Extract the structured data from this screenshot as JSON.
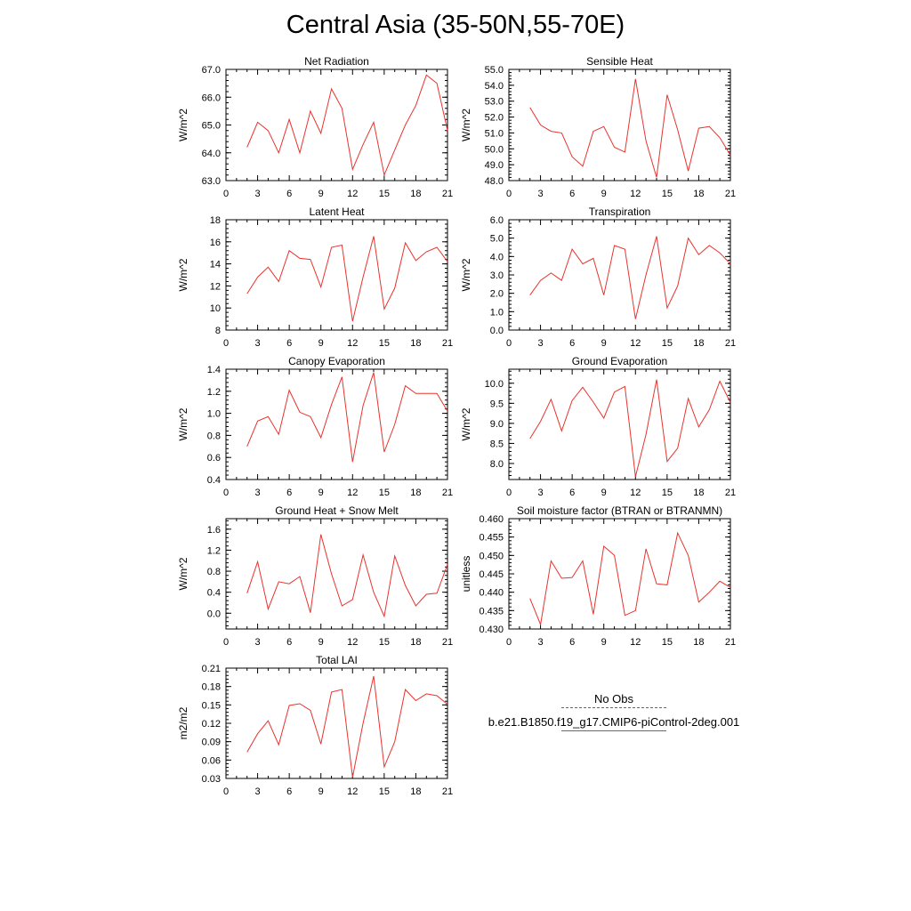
{
  "title": "Central Asia (35-50N,55-70E)",
  "colors": {
    "model": "#e8332e",
    "obs": "#5560a8"
  },
  "legend": {
    "obs_label": "No Obs",
    "model_label": "b.e21.B1850.f19_g17.CMIP6-piControl-2deg.001"
  },
  "chart_data": [
    {
      "type": "line",
      "title": "Net Radiation",
      "ylabel": "W/m^2",
      "xlim": [
        0,
        21
      ],
      "ylim": [
        63,
        67
      ],
      "xticks": [
        "0",
        "3",
        "6",
        "9",
        "12",
        "15",
        "18",
        "21"
      ],
      "yticks": [
        "63.0",
        "64.0",
        "65.0",
        "66.0",
        "67.0"
      ],
      "x": [
        2,
        3,
        4,
        5,
        6,
        7,
        8,
        9,
        10,
        11,
        12,
        13,
        14,
        15,
        16,
        17,
        18,
        19,
        20,
        21
      ],
      "series": [
        {
          "values": [
            64.2,
            65.1,
            64.8,
            64.0,
            65.2,
            64.0,
            65.5,
            64.7,
            66.3,
            65.6,
            63.4,
            64.3,
            65.1,
            63.2,
            64.1,
            65.0,
            65.7,
            66.8,
            66.5,
            64.8
          ]
        }
      ]
    },
    {
      "type": "line",
      "title": "Sensible Heat",
      "ylabel": "W/m^2",
      "xlim": [
        0,
        21
      ],
      "ylim": [
        48,
        55
      ],
      "xticks": [
        "0",
        "3",
        "6",
        "9",
        "12",
        "15",
        "18",
        "21"
      ],
      "yticks": [
        "48.0",
        "49.0",
        "50.0",
        "51.0",
        "52.0",
        "53.0",
        "54.0",
        "55.0"
      ],
      "x": [
        2,
        3,
        4,
        5,
        6,
        7,
        8,
        9,
        10,
        11,
        12,
        13,
        14,
        15,
        16,
        17,
        18,
        19,
        20,
        21
      ],
      "series": [
        {
          "values": [
            52.6,
            51.5,
            51.1,
            51.0,
            49.5,
            48.9,
            51.1,
            51.4,
            50.1,
            49.8,
            54.4,
            50.5,
            48.2,
            53.4,
            51.2,
            48.6,
            51.3,
            51.4,
            50.7,
            49.6
          ]
        }
      ]
    },
    {
      "type": "line",
      "title": "Latent Heat",
      "ylabel": "W/m^2",
      "xlim": [
        0,
        21
      ],
      "ylim": [
        8,
        18
      ],
      "xticks": [
        "0",
        "3",
        "6",
        "9",
        "12",
        "15",
        "18",
        "21"
      ],
      "yticks": [
        "8",
        "10",
        "12",
        "14",
        "16",
        "18"
      ],
      "x": [
        2,
        3,
        4,
        5,
        6,
        7,
        8,
        9,
        10,
        11,
        12,
        13,
        14,
        15,
        16,
        17,
        18,
        19,
        20,
        21
      ],
      "series": [
        {
          "values": [
            11.3,
            12.8,
            13.7,
            12.4,
            15.2,
            14.5,
            14.4,
            11.9,
            15.5,
            15.7,
            8.8,
            12.8,
            16.5,
            9.9,
            11.8,
            15.9,
            14.3,
            15.1,
            15.5,
            14.2
          ]
        }
      ]
    },
    {
      "type": "line",
      "title": "Transpiration",
      "ylabel": "W/m^2",
      "xlim": [
        0,
        21
      ],
      "ylim": [
        0,
        6
      ],
      "xticks": [
        "0",
        "3",
        "6",
        "9",
        "12",
        "15",
        "18",
        "21"
      ],
      "yticks": [
        "0.0",
        "1.0",
        "2.0",
        "3.0",
        "4.0",
        "5.0",
        "6.0"
      ],
      "x": [
        2,
        3,
        4,
        5,
        6,
        7,
        8,
        9,
        10,
        11,
        12,
        13,
        14,
        15,
        16,
        17,
        18,
        19,
        20,
        21
      ],
      "series": [
        {
          "values": [
            1.9,
            2.7,
            3.1,
            2.7,
            4.4,
            3.6,
            3.9,
            1.9,
            4.6,
            4.4,
            0.6,
            3.0,
            5.1,
            1.2,
            2.4,
            5.0,
            4.1,
            4.6,
            4.2,
            3.6
          ]
        }
      ]
    },
    {
      "type": "line",
      "title": "Canopy Evaporation",
      "ylabel": "W/m^2",
      "xlim": [
        0,
        21
      ],
      "ylim": [
        0.4,
        1.4
      ],
      "xticks": [
        "0",
        "3",
        "6",
        "9",
        "12",
        "15",
        "18",
        "21"
      ],
      "yticks": [
        "0.4",
        "0.6",
        "0.8",
        "1.0",
        "1.2",
        "1.4"
      ],
      "x": [
        2,
        3,
        4,
        5,
        6,
        7,
        8,
        9,
        10,
        11,
        12,
        13,
        14,
        15,
        16,
        17,
        18,
        19,
        20,
        21
      ],
      "series": [
        {
          "values": [
            0.7,
            0.93,
            0.97,
            0.81,
            1.21,
            1.01,
            0.97,
            0.78,
            1.08,
            1.33,
            0.56,
            1.07,
            1.37,
            0.65,
            0.9,
            1.25,
            1.18,
            1.18,
            1.18,
            1.02
          ]
        }
      ]
    },
    {
      "type": "line",
      "title": "Ground Evaporation",
      "ylabel": "W/m^2",
      "xlim": [
        0,
        21
      ],
      "ylim": [
        7.6,
        10.35
      ],
      "xticks": [
        "0",
        "3",
        "6",
        "9",
        "12",
        "15",
        "18",
        "21"
      ],
      "yticks": [
        "8.0",
        "8.5",
        "9.0",
        "9.5",
        "10.0"
      ],
      "ytick_values": [
        8.0,
        8.5,
        9.0,
        9.5,
        10.0
      ],
      "x": [
        2,
        3,
        4,
        5,
        6,
        7,
        8,
        9,
        10,
        11,
        12,
        13,
        14,
        15,
        16,
        17,
        18,
        19,
        20,
        21
      ],
      "series": [
        {
          "values": [
            8.62,
            9.05,
            9.6,
            8.81,
            9.57,
            9.9,
            9.53,
            9.13,
            9.78,
            9.92,
            7.67,
            8.72,
            10.09,
            8.05,
            8.38,
            9.62,
            8.91,
            9.34,
            10.05,
            9.52
          ]
        }
      ]
    },
    {
      "type": "line",
      "title": "Ground Heat + Snow Melt",
      "ylabel": "W/m^2",
      "xlim": [
        0,
        21
      ],
      "ylim": [
        -0.3,
        1.8
      ],
      "xticks": [
        "0",
        "3",
        "6",
        "9",
        "12",
        "15",
        "18",
        "21"
      ],
      "yticks": [
        "0.0",
        "0.4",
        "0.8",
        "1.2",
        "1.6"
      ],
      "ytick_values": [
        0.0,
        0.4,
        0.8,
        1.2,
        1.6
      ],
      "x": [
        2,
        3,
        4,
        5,
        6,
        7,
        8,
        9,
        10,
        11,
        12,
        13,
        14,
        15,
        16,
        17,
        18,
        19,
        20,
        21
      ],
      "series": [
        {
          "values": [
            0.38,
            0.98,
            0.08,
            0.6,
            0.56,
            0.7,
            0.01,
            1.5,
            0.75,
            0.14,
            0.26,
            1.11,
            0.4,
            -0.06,
            1.09,
            0.53,
            0.14,
            0.36,
            0.38,
            0.93
          ]
        }
      ]
    },
    {
      "type": "line",
      "title": "Soil moisture factor (BTRAN or BTRANMN)",
      "ylabel": "unitless",
      "xlim": [
        0,
        21
      ],
      "ylim": [
        0.43,
        0.46
      ],
      "xticks": [
        "0",
        "3",
        "6",
        "9",
        "12",
        "15",
        "18",
        "21"
      ],
      "yticks": [
        "0.430",
        "0.435",
        "0.440",
        "0.445",
        "0.450",
        "0.455",
        "0.460"
      ],
      "x": [
        2,
        3,
        4,
        5,
        6,
        7,
        8,
        9,
        10,
        11,
        12,
        13,
        14,
        15,
        16,
        17,
        18,
        19,
        20,
        21
      ],
      "series": [
        {
          "values": [
            0.4383,
            0.4312,
            0.4485,
            0.4438,
            0.444,
            0.4485,
            0.434,
            0.4525,
            0.45,
            0.4337,
            0.435,
            0.4518,
            0.4423,
            0.442,
            0.4561,
            0.45,
            0.4373,
            0.44,
            0.443,
            0.4413
          ]
        }
      ]
    },
    {
      "type": "line",
      "title": "Total LAI",
      "ylabel": "m2/m2",
      "xlim": [
        0,
        21
      ],
      "ylim": [
        0.03,
        0.21
      ],
      "xticks": [
        "0",
        "3",
        "6",
        "9",
        "12",
        "15",
        "18",
        "21"
      ],
      "yticks": [
        "0.03",
        "0.06",
        "0.09",
        "0.12",
        "0.15",
        "0.18",
        "0.21"
      ],
      "x": [
        2,
        3,
        4,
        5,
        6,
        7,
        8,
        9,
        10,
        11,
        12,
        13,
        14,
        15,
        16,
        17,
        18,
        19,
        20,
        21
      ],
      "series": [
        {
          "values": [
            0.073,
            0.103,
            0.124,
            0.085,
            0.149,
            0.152,
            0.141,
            0.086,
            0.171,
            0.175,
            0.032,
            0.12,
            0.197,
            0.049,
            0.09,
            0.175,
            0.157,
            0.168,
            0.165,
            0.151
          ]
        }
      ]
    }
  ]
}
